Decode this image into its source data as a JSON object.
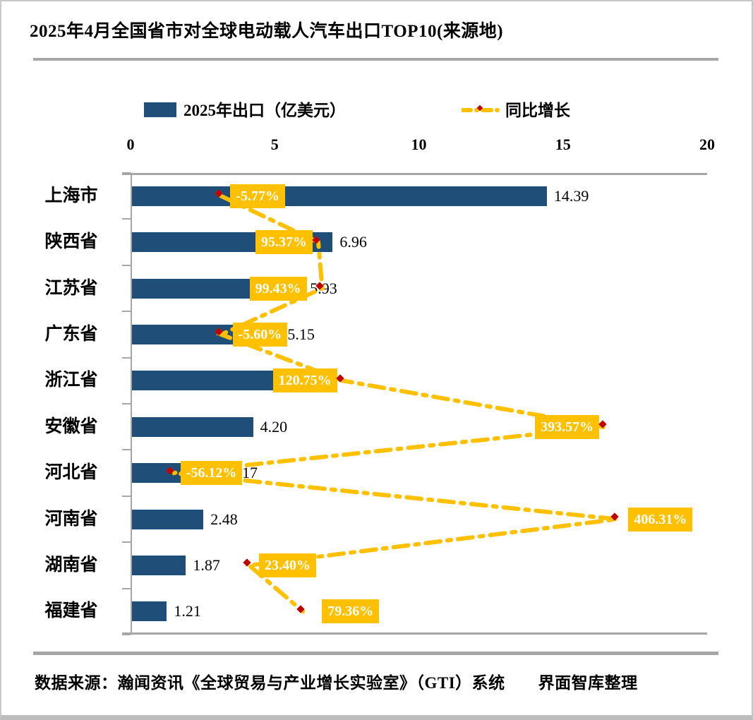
{
  "page": {
    "title": "2025年4月全国省市对全球电动载人汽车出口TOP10(来源地)",
    "footer": "数据来源：瀚闻资讯《全球贸易与产业增长实验室》（GTI）系统　　界面智库整理"
  },
  "legend": {
    "bar_label": "2025年出口（亿美元）",
    "line_label": "同比增长"
  },
  "colors": {
    "bar_blue": "#1F4E79",
    "accent_yellow": "#FFC000",
    "diamond_border": "#C00000",
    "axis_gray": "#A6A6A6",
    "pct_text": "#FFFFFF",
    "text_black": "#000000"
  },
  "chart_data": {
    "type": "bar",
    "orientation": "horizontal",
    "title": "2025年4月全国省市对全球电动载人汽车出口TOP10(来源地)",
    "categories": [
      "上海市",
      "陕西省",
      "江苏省",
      "广东省",
      "浙江省",
      "安徽省",
      "河北省",
      "河南省",
      "湖南省",
      "福建省"
    ],
    "series": [
      {
        "name": "2025年出口（亿美元）",
        "type": "bar",
        "axis": "primary",
        "values": [
          14.39,
          6.96,
          5.93,
          5.15,
          5.02,
          4.2,
          3.17,
          2.48,
          1.87,
          1.21
        ],
        "value_labels": [
          "14.39",
          "6.96",
          "5.93",
          "5.15",
          "",
          "4.20",
          "3.17",
          "2.48",
          "1.87",
          "1.21"
        ]
      },
      {
        "name": "同比增长",
        "type": "line",
        "axis": "secondary",
        "values": [
          -5.77,
          95.37,
          99.43,
          -5.6,
          120.75,
          393.57,
          -56.12,
          406.31,
          23.4,
          79.36
        ],
        "labels": [
          "-5.77%",
          "95.37%",
          "99.43%",
          "-5.60%",
          "120.75%",
          "393.57%",
          "-56.12%",
          "406.31%",
          "23.40%",
          "79.36%"
        ],
        "label_side": [
          "right",
          "left",
          "left",
          "right",
          "left",
          "left",
          "right",
          "right",
          "right",
          "right"
        ],
        "label_gap": [
          13,
          8,
          22,
          16,
          8,
          8,
          11,
          16,
          14,
          27
        ]
      }
    ],
    "x_axis": {
      "position": "top",
      "ticks": [
        "0",
        "5",
        "10",
        "15",
        "20"
      ],
      "range": [
        0,
        20
      ],
      "grid": false
    },
    "secondary_x_axis": {
      "range": [
        -100,
        500
      ],
      "visible": false
    },
    "legend_position": "top"
  }
}
